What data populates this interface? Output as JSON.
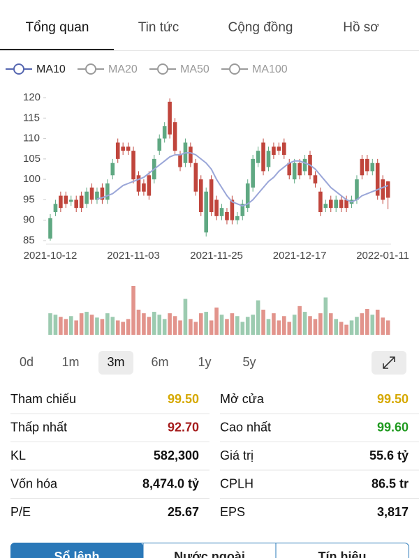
{
  "tabs": {
    "items": [
      "Tổng quan",
      "Tin tức",
      "Cộng đồng",
      "Hồ sơ"
    ],
    "selected": 0
  },
  "indicators": [
    {
      "name": "MA10",
      "color": "#5566b0",
      "active": true
    },
    {
      "name": "MA20",
      "color": "#9a9a9a",
      "active": false
    },
    {
      "name": "MA50",
      "color": "#9a9a9a",
      "active": false
    },
    {
      "name": "MA100",
      "color": "#9a9a9a",
      "active": false
    }
  ],
  "chart_data": {
    "type": "candlestick",
    "categories": [
      "2021-10-12",
      null,
      null,
      null,
      null,
      null,
      null,
      null,
      null,
      null,
      null,
      null,
      null,
      null,
      null,
      null,
      "2021-11-03",
      null,
      null,
      null,
      null,
      null,
      null,
      null,
      null,
      null,
      null,
      null,
      null,
      null,
      null,
      null,
      "2021-11-25",
      null,
      null,
      null,
      null,
      null,
      null,
      null,
      null,
      null,
      null,
      null,
      null,
      null,
      null,
      null,
      "2021-12-17",
      null,
      null,
      null,
      null,
      null,
      null,
      null,
      null,
      null,
      null,
      null,
      null,
      null,
      null,
      null,
      "2022-01-11",
      null
    ],
    "open": [
      85.5,
      92,
      96,
      96,
      94.5,
      95,
      96,
      94,
      98,
      95,
      98,
      95,
      101,
      109,
      108,
      108,
      107,
      101,
      99,
      101,
      100,
      107,
      110,
      119,
      114,
      106,
      104,
      108,
      104,
      100,
      87,
      100,
      95,
      91,
      92,
      95,
      90,
      91,
      93,
      98,
      104,
      109,
      103,
      108,
      108,
      109,
      104,
      100,
      104,
      102,
      106,
      101,
      97,
      93,
      95,
      93,
      95,
      95,
      94,
      95,
      105,
      105,
      102,
      104,
      100,
      99.5
    ],
    "close": [
      90.5,
      94,
      93,
      94,
      95,
      93,
      93,
      97,
      95,
      97,
      95,
      99,
      104,
      105,
      107,
      107,
      100,
      97,
      97,
      96,
      105,
      110,
      113,
      111,
      107,
      103,
      109,
      104,
      97,
      92,
      97,
      92,
      91,
      93,
      90,
      90,
      91,
      94,
      99,
      105,
      107,
      102,
      107,
      106,
      107,
      106,
      101,
      104,
      101,
      105,
      101,
      99,
      92,
      94,
      93,
      95,
      93,
      93,
      95,
      100,
      101,
      102,
      104,
      96,
      95,
      95.5
    ],
    "high": [
      91.5,
      95,
      97,
      97,
      96,
      96,
      97,
      98,
      99,
      98,
      99,
      100,
      105,
      110,
      109,
      109,
      108,
      102,
      100,
      102,
      106,
      111,
      114,
      119.8,
      115,
      107,
      110,
      109,
      105,
      101,
      98,
      101,
      96,
      94,
      93,
      96,
      92,
      95,
      100,
      106,
      108,
      110,
      108,
      109,
      109,
      110,
      105,
      105,
      105,
      106,
      107,
      102,
      98,
      95,
      96,
      96,
      96,
      96,
      96,
      101,
      106,
      106,
      105,
      105,
      101,
      99.6
    ],
    "low": [
      85,
      91,
      92,
      93,
      93.5,
      92,
      92,
      93,
      94,
      94,
      94,
      94,
      100,
      104,
      106,
      106,
      99,
      96,
      96,
      95,
      99,
      106,
      109,
      110,
      106,
      102,
      103,
      103,
      96,
      91,
      86,
      91,
      90,
      90,
      89,
      89,
      89,
      90,
      92,
      97,
      103,
      101,
      102,
      105,
      106,
      105,
      100,
      99,
      100,
      101,
      100,
      98,
      91,
      92,
      92,
      92,
      92,
      92,
      93,
      94,
      100,
      101,
      101,
      95,
      94,
      92.7
    ],
    "volume": [
      30,
      28,
      25,
      22,
      26,
      20,
      30,
      32,
      28,
      24,
      22,
      30,
      25,
      20,
      18,
      22,
      68,
      35,
      30,
      25,
      32,
      28,
      22,
      30,
      26,
      20,
      50,
      22,
      18,
      30,
      32,
      20,
      38,
      28,
      22,
      30,
      26,
      18,
      25,
      28,
      48,
      35,
      22,
      30,
      20,
      26,
      18,
      28,
      40,
      32,
      26,
      22,
      30,
      52,
      30,
      22,
      18,
      14,
      20,
      25,
      30,
      36,
      28,
      35,
      24,
      20
    ],
    "ma10": {
      "name": "MA10",
      "color": "#9aa6d8",
      "values": [
        null,
        null,
        null,
        null,
        null,
        null,
        null,
        null,
        null,
        95.2,
        95.5,
        96,
        96.5,
        97.5,
        98.5,
        99,
        99.5,
        100,
        100.5,
        101.5,
        102.5,
        103.5,
        104.5,
        105.5,
        106,
        106,
        106.5,
        106.5,
        106,
        105,
        104,
        102.5,
        100,
        98,
        96,
        94.5,
        94,
        93.5,
        94,
        95,
        96.5,
        98,
        99.5,
        100.5,
        102,
        103,
        104,
        104.5,
        104.5,
        104,
        103.5,
        102.5,
        101,
        99.5,
        98,
        97,
        96,
        95,
        94.5,
        95,
        96,
        96.5,
        97,
        97.5,
        98,
        98.5
      ]
    },
    "up_color": "#5fa882",
    "down_color": "#c0453c",
    "up_volume_color": "#9ccbb0",
    "down_volume_color": "#e2948c",
    "ylim": [
      85,
      120
    ],
    "yticks": [
      85,
      90,
      95,
      100,
      105,
      110,
      115,
      120
    ]
  },
  "periods": {
    "items": [
      "0d",
      "1m",
      "3m",
      "6m",
      "1y",
      "5y"
    ],
    "selected": 2
  },
  "stats": [
    {
      "label": "Tham chiếu",
      "value": "99.50",
      "color": "#d6a900"
    },
    {
      "label": "Mở cửa",
      "value": "99.50",
      "color": "#d6a900"
    },
    {
      "label": "Thấp nhất",
      "value": "92.70",
      "color": "#a51c1c"
    },
    {
      "label": "Cao nhất",
      "value": "99.60",
      "color": "#1f9a1f"
    },
    {
      "label": "KL",
      "value": "582,300",
      "color": "#111111"
    },
    {
      "label": "Giá trị",
      "value": "55.6 tỷ",
      "color": "#111111"
    },
    {
      "label": "Vốn hóa",
      "value": "8,474.0 tỷ",
      "color": "#111111"
    },
    {
      "label": "CPLH",
      "value": "86.5 tr",
      "color": "#111111"
    },
    {
      "label": "P/E",
      "value": "25.67",
      "color": "#111111"
    },
    {
      "label": "EPS",
      "value": "3,817",
      "color": "#111111"
    }
  ],
  "bottom_tabs": {
    "items": [
      "Sổ lệnh",
      "Nước ngoài",
      "Tín hiệu"
    ],
    "selected": 0
  }
}
